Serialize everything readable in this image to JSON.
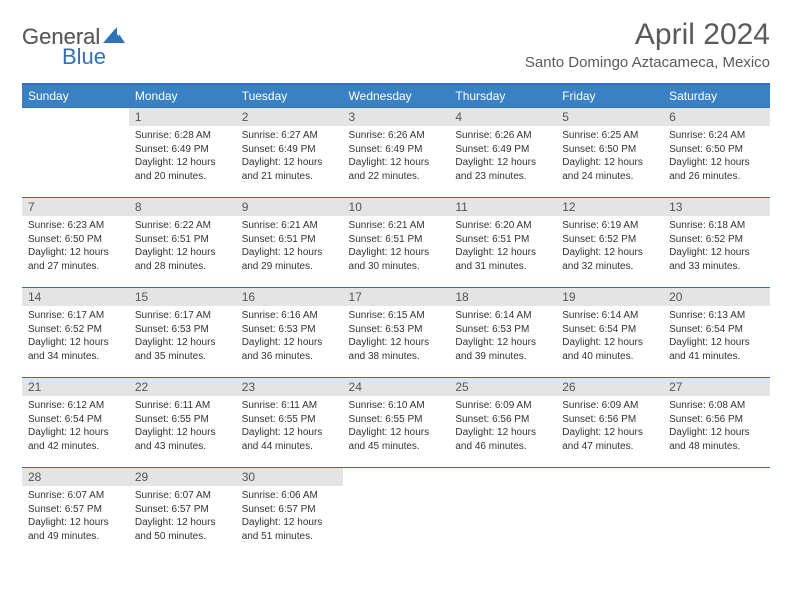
{
  "logo": {
    "general": "General",
    "blue": "Blue"
  },
  "title": "April 2024",
  "location": "Santo Domingo Aztacameca, Mexico",
  "colors": {
    "header_bg": "#3a81c4",
    "header_border": "#2f72b8",
    "daynum_bg": "#e4e4e4",
    "text": "#333333",
    "muted": "#5a5a5a"
  },
  "weekdays": [
    "Sunday",
    "Monday",
    "Tuesday",
    "Wednesday",
    "Thursday",
    "Friday",
    "Saturday"
  ],
  "weeks": [
    [
      {
        "n": "",
        "lines": []
      },
      {
        "n": "1",
        "lines": [
          "Sunrise: 6:28 AM",
          "Sunset: 6:49 PM",
          "Daylight: 12 hours and 20 minutes."
        ]
      },
      {
        "n": "2",
        "lines": [
          "Sunrise: 6:27 AM",
          "Sunset: 6:49 PM",
          "Daylight: 12 hours and 21 minutes."
        ]
      },
      {
        "n": "3",
        "lines": [
          "Sunrise: 6:26 AM",
          "Sunset: 6:49 PM",
          "Daylight: 12 hours and 22 minutes."
        ]
      },
      {
        "n": "4",
        "lines": [
          "Sunrise: 6:26 AM",
          "Sunset: 6:49 PM",
          "Daylight: 12 hours and 23 minutes."
        ]
      },
      {
        "n": "5",
        "lines": [
          "Sunrise: 6:25 AM",
          "Sunset: 6:50 PM",
          "Daylight: 12 hours and 24 minutes."
        ]
      },
      {
        "n": "6",
        "lines": [
          "Sunrise: 6:24 AM",
          "Sunset: 6:50 PM",
          "Daylight: 12 hours and 26 minutes."
        ]
      }
    ],
    [
      {
        "n": "7",
        "lines": [
          "Sunrise: 6:23 AM",
          "Sunset: 6:50 PM",
          "Daylight: 12 hours and 27 minutes."
        ]
      },
      {
        "n": "8",
        "lines": [
          "Sunrise: 6:22 AM",
          "Sunset: 6:51 PM",
          "Daylight: 12 hours and 28 minutes."
        ]
      },
      {
        "n": "9",
        "lines": [
          "Sunrise: 6:21 AM",
          "Sunset: 6:51 PM",
          "Daylight: 12 hours and 29 minutes."
        ]
      },
      {
        "n": "10",
        "lines": [
          "Sunrise: 6:21 AM",
          "Sunset: 6:51 PM",
          "Daylight: 12 hours and 30 minutes."
        ]
      },
      {
        "n": "11",
        "lines": [
          "Sunrise: 6:20 AM",
          "Sunset: 6:51 PM",
          "Daylight: 12 hours and 31 minutes."
        ]
      },
      {
        "n": "12",
        "lines": [
          "Sunrise: 6:19 AM",
          "Sunset: 6:52 PM",
          "Daylight: 12 hours and 32 minutes."
        ]
      },
      {
        "n": "13",
        "lines": [
          "Sunrise: 6:18 AM",
          "Sunset: 6:52 PM",
          "Daylight: 12 hours and 33 minutes."
        ]
      }
    ],
    [
      {
        "n": "14",
        "lines": [
          "Sunrise: 6:17 AM",
          "Sunset: 6:52 PM",
          "Daylight: 12 hours and 34 minutes."
        ]
      },
      {
        "n": "15",
        "lines": [
          "Sunrise: 6:17 AM",
          "Sunset: 6:53 PM",
          "Daylight: 12 hours and 35 minutes."
        ]
      },
      {
        "n": "16",
        "lines": [
          "Sunrise: 6:16 AM",
          "Sunset: 6:53 PM",
          "Daylight: 12 hours and 36 minutes."
        ]
      },
      {
        "n": "17",
        "lines": [
          "Sunrise: 6:15 AM",
          "Sunset: 6:53 PM",
          "Daylight: 12 hours and 38 minutes."
        ]
      },
      {
        "n": "18",
        "lines": [
          "Sunrise: 6:14 AM",
          "Sunset: 6:53 PM",
          "Daylight: 12 hours and 39 minutes."
        ]
      },
      {
        "n": "19",
        "lines": [
          "Sunrise: 6:14 AM",
          "Sunset: 6:54 PM",
          "Daylight: 12 hours and 40 minutes."
        ]
      },
      {
        "n": "20",
        "lines": [
          "Sunrise: 6:13 AM",
          "Sunset: 6:54 PM",
          "Daylight: 12 hours and 41 minutes."
        ]
      }
    ],
    [
      {
        "n": "21",
        "lines": [
          "Sunrise: 6:12 AM",
          "Sunset: 6:54 PM",
          "Daylight: 12 hours and 42 minutes."
        ]
      },
      {
        "n": "22",
        "lines": [
          "Sunrise: 6:11 AM",
          "Sunset: 6:55 PM",
          "Daylight: 12 hours and 43 minutes."
        ]
      },
      {
        "n": "23",
        "lines": [
          "Sunrise: 6:11 AM",
          "Sunset: 6:55 PM",
          "Daylight: 12 hours and 44 minutes."
        ]
      },
      {
        "n": "24",
        "lines": [
          "Sunrise: 6:10 AM",
          "Sunset: 6:55 PM",
          "Daylight: 12 hours and 45 minutes."
        ]
      },
      {
        "n": "25",
        "lines": [
          "Sunrise: 6:09 AM",
          "Sunset: 6:56 PM",
          "Daylight: 12 hours and 46 minutes."
        ]
      },
      {
        "n": "26",
        "lines": [
          "Sunrise: 6:09 AM",
          "Sunset: 6:56 PM",
          "Daylight: 12 hours and 47 minutes."
        ]
      },
      {
        "n": "27",
        "lines": [
          "Sunrise: 6:08 AM",
          "Sunset: 6:56 PM",
          "Daylight: 12 hours and 48 minutes."
        ]
      }
    ],
    [
      {
        "n": "28",
        "lines": [
          "Sunrise: 6:07 AM",
          "Sunset: 6:57 PM",
          "Daylight: 12 hours and 49 minutes."
        ]
      },
      {
        "n": "29",
        "lines": [
          "Sunrise: 6:07 AM",
          "Sunset: 6:57 PM",
          "Daylight: 12 hours and 50 minutes."
        ]
      },
      {
        "n": "30",
        "lines": [
          "Sunrise: 6:06 AM",
          "Sunset: 6:57 PM",
          "Daylight: 12 hours and 51 minutes."
        ]
      },
      {
        "n": "",
        "lines": []
      },
      {
        "n": "",
        "lines": []
      },
      {
        "n": "",
        "lines": []
      },
      {
        "n": "",
        "lines": []
      }
    ]
  ]
}
